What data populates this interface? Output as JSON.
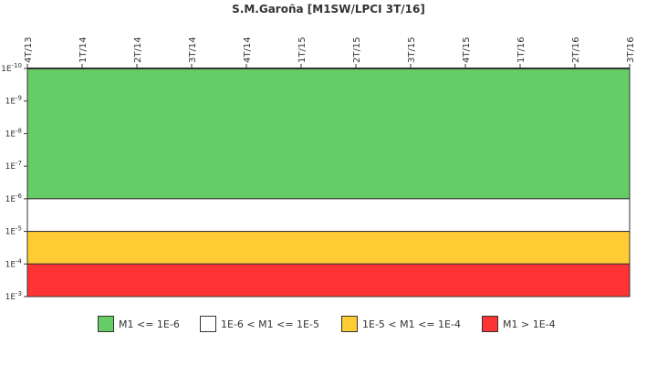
{
  "chart_data": {
    "type": "area",
    "title": "S.M.Garoña [M1SW/LPCI 3T/16]",
    "x_categories": [
      "4T/13",
      "1T/14",
      "2T/14",
      "3T/14",
      "4T/14",
      "1T/15",
      "2T/15",
      "3T/15",
      "4T/15",
      "1T/16",
      "2T/16",
      "3T/16"
    ],
    "y_scale": "log",
    "y_axis_inverted": true,
    "y_ticks": [
      "1E-10",
      "1E-9",
      "1E-8",
      "1E-7",
      "1E-6",
      "1E-5",
      "1E-4",
      "1E-3"
    ],
    "y_range_exponent": [
      -10,
      -3
    ],
    "bands": [
      {
        "label": "M1 <= 1E-6",
        "from_exp": -10,
        "to_exp": -6,
        "color": "#66cc66"
      },
      {
        "label": "1E-6 < M1 <= 1E-5",
        "from_exp": -6,
        "to_exp": -5,
        "color": "#ffffff"
      },
      {
        "label": "1E-5 < M1 <= 1E-4",
        "from_exp": -5,
        "to_exp": -4,
        "color": "#ffcc33"
      },
      {
        "label": "M1 > 1E-4",
        "from_exp": -4,
        "to_exp": -3,
        "color": "#ff3333"
      }
    ],
    "legend_position": "bottom",
    "grid": false
  }
}
